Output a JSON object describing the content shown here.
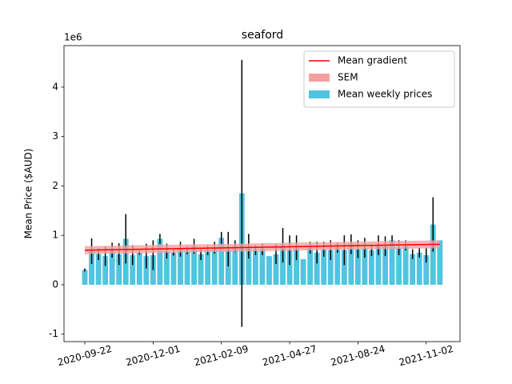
{
  "chart_data": {
    "type": "bar",
    "title": "seaford",
    "y_label": "Mean Price ($AUD)",
    "y_offset_label": "1e6",
    "categories": [
      "2020-09-22",
      null,
      null,
      null,
      null,
      null,
      null,
      null,
      null,
      null,
      "2020-12-01",
      null,
      null,
      null,
      null,
      null,
      null,
      null,
      null,
      null,
      "2021-02-09",
      null,
      null,
      null,
      null,
      null,
      null,
      null,
      null,
      null,
      "2021-04-27",
      null,
      null,
      null,
      null,
      null,
      null,
      null,
      null,
      null,
      "2021-08-24",
      null,
      null,
      null,
      null,
      null,
      null,
      null,
      null,
      null,
      "2021-11-02",
      null,
      null
    ],
    "series": [
      {
        "name": "Mean weekly prices",
        "color": "#50c4e0",
        "values": [
          0.3,
          0.68,
          0.62,
          0.58,
          0.7,
          0.62,
          0.93,
          0.6,
          0.65,
          0.58,
          0.6,
          0.93,
          0.68,
          0.65,
          0.72,
          0.7,
          0.78,
          0.62,
          0.7,
          0.75,
          0.95,
          0.72,
          0.78,
          1.85,
          0.78,
          0.7,
          0.72,
          0.58,
          0.62,
          0.8,
          0.7,
          0.75,
          0.52,
          0.75,
          0.65,
          0.72,
          0.7,
          0.75,
          0.7,
          0.82,
          0.72,
          0.75,
          0.7,
          0.8,
          0.78,
          0.9,
          0.75,
          0.8,
          0.62,
          0.65,
          0.6,
          1.22,
          0.9
        ],
        "errors": [
          0.03,
          0.26,
          0.12,
          0.2,
          0.15,
          0.22,
          0.5,
          0.2,
          0.04,
          0.25,
          0.3,
          0.1,
          0.15,
          0.06,
          0.15,
          0.08,
          0.15,
          0.12,
          0.1,
          0.12,
          0.12,
          0.35,
          0.12,
          2.7,
          0.25,
          0.1,
          0.12,
          0,
          0.2,
          0.35,
          0.3,
          0.25,
          0,
          0.12,
          0.22,
          0.15,
          0.2,
          0.1,
          0.3,
          0.2,
          0.18,
          0.2,
          0.12,
          0.2,
          0.2,
          0.1,
          0.15,
          0.1,
          0.1,
          0.1,
          0.15,
          0.55,
          0
        ],
        "error_color": "#000000"
      }
    ],
    "trend": {
      "name": "Mean gradient",
      "color": "#ff0000",
      "x": [
        0,
        52
      ],
      "values": [
        0.7,
        0.82
      ]
    },
    "band": {
      "name": "SEM",
      "color": "#f4a0a0",
      "errors": [
        0.08,
        0.08
      ]
    },
    "xlim": [
      -3.05,
      54.95
    ],
    "ylim": [
      -1.15,
      4.84
    ],
    "yticks": [
      -1,
      0,
      1,
      2,
      3,
      4
    ],
    "legend": "upper right"
  }
}
